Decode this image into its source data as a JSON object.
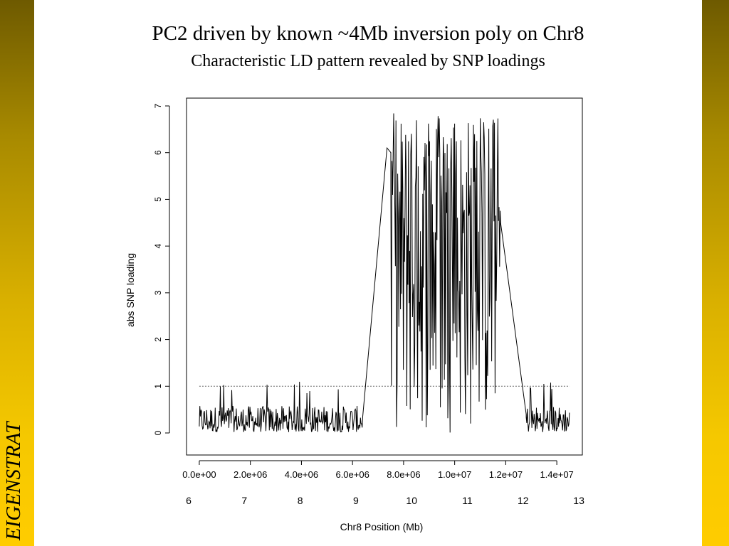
{
  "slide": {
    "title": "PC2 driven by known ~4Mb inversion poly on Chr8",
    "subtitle": "Characteristic LD pattern revealed by SNP loadings",
    "brand": "EIGENSTRAT",
    "accent_colors": [
      "#6e5a00",
      "#ffcc00"
    ]
  },
  "chart_data": {
    "type": "line",
    "ylabel": "abs SNP loading",
    "xlabel": "Chr8 Position (Mb)",
    "xlim": [
      -500000,
      15000000
    ],
    "ylim": [
      0,
      7
    ],
    "yticks": [
      "0",
      "1",
      "2",
      "3",
      "4",
      "5",
      "6",
      "7"
    ],
    "x_ticks_primary": {
      "values": [
        0,
        2000000,
        4000000,
        6000000,
        8000000,
        10000000,
        12000000,
        14000000
      ],
      "labels": [
        "0.0e+00",
        "2.0e+06",
        "4.0e+06",
        "6.0e+06",
        "8.0e+06",
        "1.0e+07",
        "1.2e+07",
        "1.4e+07"
      ]
    },
    "x_ticks_mb": {
      "values": [
        6,
        7,
        8,
        9,
        10,
        11,
        12,
        13
      ],
      "labels": [
        "6",
        "7",
        "8",
        "9",
        "10",
        "11",
        "12",
        "13"
      ]
    },
    "threshold_line": 1,
    "series": [
      {
        "segments": [
          {
            "region": "baseline",
            "x_range": [
              0,
              6400000
            ],
            "y_range": [
              0.02,
              1.15
            ],
            "typical": 0.35
          },
          {
            "region": "inversion",
            "x_range": [
              7500000,
              11800000
            ],
            "y_range": [
              0,
              6.9
            ],
            "typical": 3.0
          },
          {
            "region": "baseline",
            "x_range": [
              12800000,
              14500000
            ],
            "y_range": [
              0.02,
              1.1
            ],
            "typical": 0.35
          }
        ],
        "connectors": [
          [
            [
              6400000,
              0.35
            ],
            [
              7350000,
              6.1
            ],
            [
              7500000,
              6.0
            ]
          ],
          [
            [
              11800000,
              4.5
            ],
            [
              12800000,
              0.4
            ]
          ]
        ]
      }
    ]
  }
}
